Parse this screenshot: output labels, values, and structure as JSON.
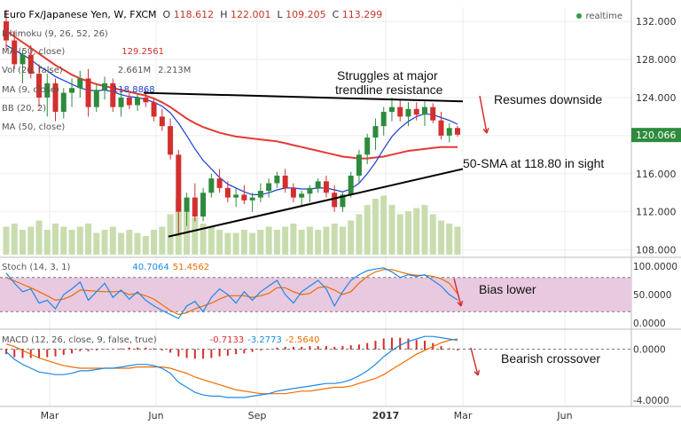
{
  "header": {
    "symbol": "Euro Fx/Japanese Yen, W, FXCM",
    "o_label": "O",
    "o": "118.612",
    "h_label": "H",
    "h": "122.001",
    "l_label": "L",
    "l": "109.205",
    "c_label": "C",
    "c": "113.299"
  },
  "realtime": "realtime",
  "indicators": [
    {
      "label": "Ichimoku (9, 26, 52, 26)",
      "value": ""
    },
    {
      "label": "MA (50, close)",
      "value": "129.2561",
      "color": "#d32f2f"
    },
    {
      "label": "Vol (20, false)",
      "value": "2.661M",
      "value2": "2.213M"
    },
    {
      "label": "MA (9, close)",
      "value": "118.8868",
      "color": "#1a3fd4"
    },
    {
      "label": "BB (20, 2)",
      "value": ""
    },
    {
      "label": "MA (50, close)",
      "value": ""
    }
  ],
  "annotations": {
    "struggles": "Struggles at major",
    "struggles2": "trendline resistance",
    "resumes": "Resumes downside",
    "sma": "50-SMA at 118.80 in sight",
    "bias": "Bias lower",
    "bearish": "Bearish crossover"
  },
  "stoch": {
    "label": "Stoch (14, 3, 1)",
    "k": "40.7064",
    "d": "51.4562"
  },
  "macd": {
    "label": "MACD (12, 26, close, 9, false, true)",
    "hist": "-0.7133",
    "signal": "-3.2773",
    "macd": "-2.5640"
  },
  "colors": {
    "up": "#2e8b3d",
    "down": "#d32f2f",
    "sma50": "#e53935",
    "ma9": "#1a3fd4",
    "stochK": "#1e88e5",
    "stochD": "#ef6c00",
    "stochBand": "#e8c9e0",
    "macd": "#1e88e5",
    "signal": "#ef6c00",
    "hist": "#d32f2f",
    "volume": "#c9dcae",
    "trend": "#000000",
    "arrow": "#d32f2f",
    "lastPrice": "#2e8b3d"
  },
  "chart_data": [
    {
      "type": "candlestick",
      "title": "Euro Fx/Japanese Yen, W, FXCM",
      "x_ticks": [
        "Mar",
        "Jun",
        "Sep",
        "2017",
        "Mar",
        "Jun"
      ],
      "y_ticks": [
        "132.000",
        "128.000",
        "124.000",
        "120.000",
        "116.000",
        "112.000",
        "108.000"
      ],
      "ylim": [
        107.5,
        133.5
      ],
      "last_price": "120.066",
      "candles": [
        [
          132.0,
          133.2,
          129.0,
          130.0
        ],
        [
          130.0,
          131.0,
          127.0,
          127.5
        ],
        [
          127.5,
          129.0,
          125.5,
          128.5
        ],
        [
          128.5,
          129.5,
          126.0,
          126.5
        ],
        [
          126.5,
          127.5,
          123.0,
          124.0
        ],
        [
          124.0,
          126.5,
          122.0,
          125.5
        ],
        [
          125.5,
          126.0,
          121.5,
          122.5
        ],
        [
          122.5,
          125.0,
          121.8,
          124.5
        ],
        [
          124.5,
          126.0,
          123.0,
          125.0
        ],
        [
          125.0,
          126.8,
          124.0,
          126.0
        ],
        [
          126.0,
          127.0,
          122.0,
          123.0
        ],
        [
          123.0,
          125.5,
          122.5,
          124.8
        ],
        [
          124.8,
          126.2,
          123.8,
          125.5
        ],
        [
          125.5,
          126.0,
          122.5,
          123.0
        ],
        [
          123.0,
          124.8,
          122.0,
          124.0
        ],
        [
          124.0,
          124.5,
          122.8,
          123.2
        ],
        [
          123.2,
          124.5,
          122.6,
          124.0
        ],
        [
          124.0,
          124.8,
          123.0,
          123.5
        ],
        [
          123.5,
          124.0,
          121.5,
          122.0
        ],
        [
          122.0,
          122.8,
          120.5,
          121.0
        ],
        [
          121.0,
          121.8,
          117.5,
          118.0
        ],
        [
          118.0,
          118.5,
          109.5,
          112.0
        ],
        [
          112.0,
          114.0,
          110.5,
          113.5
        ],
        [
          113.5,
          115.0,
          111.0,
          111.5
        ],
        [
          111.5,
          114.5,
          111.0,
          114.0
        ],
        [
          114.0,
          116.0,
          113.5,
          115.5
        ],
        [
          115.5,
          116.5,
          114.0,
          114.5
        ],
        [
          114.5,
          115.2,
          113.0,
          113.5
        ],
        [
          113.5,
          114.5,
          112.5,
          113.8
        ],
        [
          113.8,
          114.8,
          112.8,
          113.2
        ],
        [
          113.2,
          114.0,
          112.0,
          113.5
        ],
        [
          113.5,
          115.0,
          113.0,
          114.2
        ],
        [
          114.2,
          115.5,
          113.5,
          115.0
        ],
        [
          115.0,
          116.2,
          114.5,
          115.8
        ],
        [
          115.8,
          116.5,
          114.0,
          114.5
        ],
        [
          114.5,
          115.0,
          113.0,
          113.5
        ],
        [
          113.5,
          114.2,
          112.5,
          113.9
        ],
        [
          113.9,
          114.8,
          113.0,
          114.5
        ],
        [
          114.5,
          115.5,
          114.0,
          115.2
        ],
        [
          115.2,
          115.8,
          113.5,
          114.0
        ],
        [
          114.0,
          114.8,
          112.0,
          112.5
        ],
        [
          112.5,
          114.0,
          112.0,
          113.8
        ],
        [
          113.8,
          116.2,
          113.5,
          115.8
        ],
        [
          115.8,
          118.5,
          115.0,
          118.0
        ],
        [
          118.0,
          120.2,
          117.0,
          119.8
        ],
        [
          119.8,
          121.8,
          118.5,
          121.0
        ],
        [
          121.0,
          123.0,
          120.0,
          122.5
        ],
        [
          122.5,
          124.0,
          121.5,
          123.0
        ],
        [
          123.0,
          123.8,
          121.5,
          122.0
        ],
        [
          122.0,
          123.5,
          121.0,
          122.8
        ],
        [
          122.8,
          123.5,
          121.6,
          122.2
        ],
        [
          122.2,
          123.6,
          121.0,
          123.0
        ],
        [
          123.0,
          123.4,
          121.3,
          121.6
        ],
        [
          121.6,
          122.5,
          119.6,
          120.0
        ],
        [
          120.0,
          121.3,
          119.3,
          120.8
        ],
        [
          120.8,
          121.0,
          119.9,
          120.1
        ]
      ],
      "sma50": [
        131.0,
        130.4,
        129.8,
        129.2,
        128.6,
        128.0,
        127.4,
        126.9,
        126.4,
        126.0,
        125.7,
        125.4,
        125.2,
        125.0,
        124.8,
        124.6,
        124.4,
        124.2,
        123.9,
        123.5,
        123.0,
        122.4,
        121.8,
        121.3,
        120.9,
        120.6,
        120.3,
        120.1,
        119.9,
        119.8,
        119.7,
        119.6,
        119.5,
        119.4,
        119.2,
        119.0,
        118.8,
        118.6,
        118.4,
        118.2,
        118.0,
        117.8,
        117.7,
        117.6,
        117.6,
        117.7,
        117.8,
        118.0,
        118.2,
        118.4,
        118.5,
        118.6,
        118.7,
        118.8,
        118.8,
        118.8
      ],
      "ma9": [
        129.5,
        129.0,
        128.5,
        128.0,
        127.3,
        126.8,
        126.2,
        125.8,
        125.4,
        125.0,
        124.8,
        124.7,
        124.8,
        124.6,
        124.3,
        124.1,
        124.0,
        123.8,
        123.5,
        123.1,
        122.4,
        121.3,
        120.0,
        118.6,
        117.4,
        116.5,
        115.6,
        114.9,
        114.5,
        114.1,
        113.8,
        113.8,
        114.0,
        114.3,
        114.5,
        114.5,
        114.4,
        114.4,
        114.5,
        114.5,
        114.3,
        114.1,
        114.4,
        115.0,
        116.0,
        117.2,
        118.6,
        119.9,
        120.8,
        121.5,
        122.0,
        122.3,
        122.2,
        121.9,
        121.6,
        121.2
      ],
      "volume": [
        0.9,
        1.0,
        0.8,
        0.9,
        1.1,
        0.8,
        1.0,
        0.9,
        0.8,
        0.9,
        1.0,
        0.7,
        0.8,
        0.9,
        0.7,
        0.8,
        0.7,
        0.6,
        0.8,
        0.9,
        1.3,
        1.8,
        1.4,
        1.2,
        1.0,
        0.9,
        0.8,
        0.7,
        0.7,
        0.8,
        0.7,
        0.8,
        0.9,
        0.8,
        0.9,
        1.0,
        0.8,
        0.9,
        0.8,
        0.9,
        1.0,
        0.9,
        1.1,
        1.3,
        1.6,
        1.8,
        1.9,
        1.6,
        1.3,
        1.4,
        1.5,
        1.6,
        1.3,
        1.1,
        1.0,
        0.9
      ]
    },
    {
      "type": "line",
      "title": "Stoch (14, 3, 1)",
      "y_ticks": [
        "100.0000",
        "50.0000",
        "0.0000"
      ],
      "ylim": [
        0,
        100
      ],
      "band": [
        20,
        80
      ],
      "k": [
        88,
        70,
        55,
        60,
        35,
        40,
        25,
        50,
        60,
        72,
        40,
        55,
        70,
        45,
        58,
        42,
        55,
        40,
        30,
        22,
        15,
        8,
        30,
        38,
        20,
        45,
        60,
        50,
        35,
        55,
        40,
        55,
        65,
        75,
        50,
        35,
        55,
        65,
        75,
        60,
        30,
        55,
        75,
        85,
        92,
        95,
        97,
        90,
        80,
        85,
        82,
        85,
        75,
        65,
        50,
        40.7
      ],
      "d": [
        80,
        74,
        68,
        62,
        55,
        48,
        40,
        42,
        48,
        58,
        57,
        56,
        55,
        55,
        56,
        50,
        52,
        48,
        42,
        32,
        22,
        15,
        18,
        25,
        30,
        35,
        42,
        48,
        48,
        48,
        45,
        48,
        52,
        62,
        62,
        55,
        50,
        52,
        62,
        64,
        58,
        50,
        55,
        70,
        82,
        90,
        94,
        94,
        90,
        86,
        84,
        84,
        82,
        78,
        70,
        51.5
      ]
    },
    {
      "type": "line",
      "title": "MACD (12, 26, close, 9, false, true)",
      "y_ticks": [
        "0.0000",
        "-4.0000"
      ],
      "ylim": [
        -4.5,
        1.5
      ],
      "macd": [
        -0.2,
        -0.8,
        -1.2,
        -1.5,
        -1.8,
        -1.9,
        -2.0,
        -2.0,
        -1.9,
        -1.7,
        -1.7,
        -1.6,
        -1.5,
        -1.5,
        -1.4,
        -1.3,
        -1.2,
        -1.2,
        -1.3,
        -1.5,
        -1.9,
        -2.6,
        -3.0,
        -3.4,
        -3.6,
        -3.7,
        -3.7,
        -3.8,
        -3.8,
        -3.8,
        -3.7,
        -3.6,
        -3.5,
        -3.3,
        -3.2,
        -3.1,
        -3.0,
        -2.9,
        -2.8,
        -2.7,
        -2.7,
        -2.6,
        -2.4,
        -2.1,
        -1.7,
        -1.2,
        -0.6,
        -0.1,
        0.3,
        0.6,
        0.8,
        1.0,
        1.0,
        0.9,
        0.8,
        0.7
      ],
      "signal": [
        0.4,
        0.2,
        -0.1,
        -0.4,
        -0.7,
        -0.9,
        -1.1,
        -1.3,
        -1.4,
        -1.5,
        -1.5,
        -1.5,
        -1.5,
        -1.5,
        -1.5,
        -1.5,
        -1.4,
        -1.4,
        -1.4,
        -1.4,
        -1.5,
        -1.7,
        -1.9,
        -2.2,
        -2.4,
        -2.6,
        -2.8,
        -3.0,
        -3.2,
        -3.3,
        -3.4,
        -3.5,
        -3.5,
        -3.5,
        -3.5,
        -3.4,
        -3.3,
        -3.3,
        -3.2,
        -3.1,
        -3.0,
        -3.0,
        -2.9,
        -2.7,
        -2.5,
        -2.3,
        -2.0,
        -1.6,
        -1.2,
        -0.8,
        -0.4,
        -0.1,
        0.2,
        0.5,
        0.7,
        0.8
      ]
    }
  ]
}
